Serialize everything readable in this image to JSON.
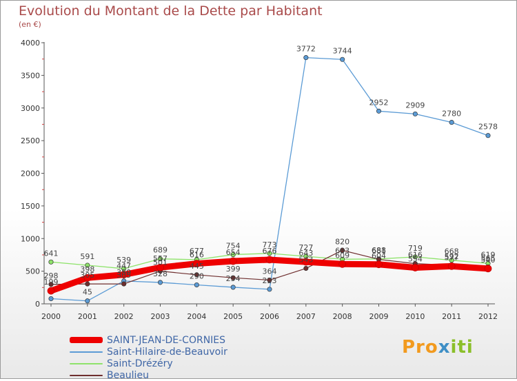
{
  "chart_data": {
    "type": "line",
    "title": "Evolution du Montant de la Dette par Habitant",
    "subtitle": "(en €)",
    "x": [
      "2000",
      "2001",
      "2002",
      "2003",
      "2004",
      "2005",
      "2006",
      "2007",
      "2008",
      "2009",
      "2010",
      "2011",
      "2012"
    ],
    "ylim": [
      0,
      4000
    ],
    "yticks": [
      0,
      500,
      1000,
      1500,
      2000,
      2500,
      3000,
      3500,
      4000
    ],
    "grid": false,
    "legend_position": "bottom-left",
    "series": [
      {
        "name": "SAINT-JEAN-DE-CORNIES",
        "color": "#ee0000",
        "values": [
          199,
          398,
          447,
          557,
          616,
          654,
          676,
          643,
          609,
          604,
          554,
          577,
          540
        ],
        "labels": [
          "199",
          "398",
          "447",
          "557",
          "616",
          "654",
          "676",
          "643",
          "609",
          "604",
          "554",
          "577",
          "540"
        ]
      },
      {
        "name": "Saint-Hilaire-de-Beauvoir",
        "color": "#5b9bd5",
        "values": [
          79,
          45,
          350,
          328,
          290,
          254,
          223,
          3772,
          3744,
          2952,
          2909,
          2780,
          2578
        ],
        "labels": [
          "",
          "45",
          "350",
          "328",
          "290",
          "254",
          "223",
          "3772",
          "3744",
          "2952",
          "2909",
          "2780",
          "2578"
        ]
      },
      {
        "name": "Saint-Drézéry",
        "color": "#8ee36a",
        "values": [
          641,
          591,
          539,
          689,
          677,
          754,
          773,
          727,
          683,
          688,
          719,
          668,
          619
        ],
        "labels": [
          "641",
          "591",
          "539",
          "689",
          "677",
          "754",
          "773",
          "727",
          "683",
          "688",
          "719",
          "668",
          "619"
        ]
      },
      {
        "name": "Beaulieu",
        "color": "#6e2e2e",
        "values": [
          298,
          305,
          305,
          501,
          445,
          399,
          364,
          543,
          820,
          681,
          616,
          592,
          565
        ],
        "labels": [
          "298",
          "305",
          "305",
          "501",
          "445",
          "399",
          "364",
          "543",
          "820",
          "681",
          "616",
          "592",
          "565"
        ]
      }
    ]
  },
  "brand": {
    "part1": "Pro",
    "part2": "x",
    "part3": "iti"
  }
}
